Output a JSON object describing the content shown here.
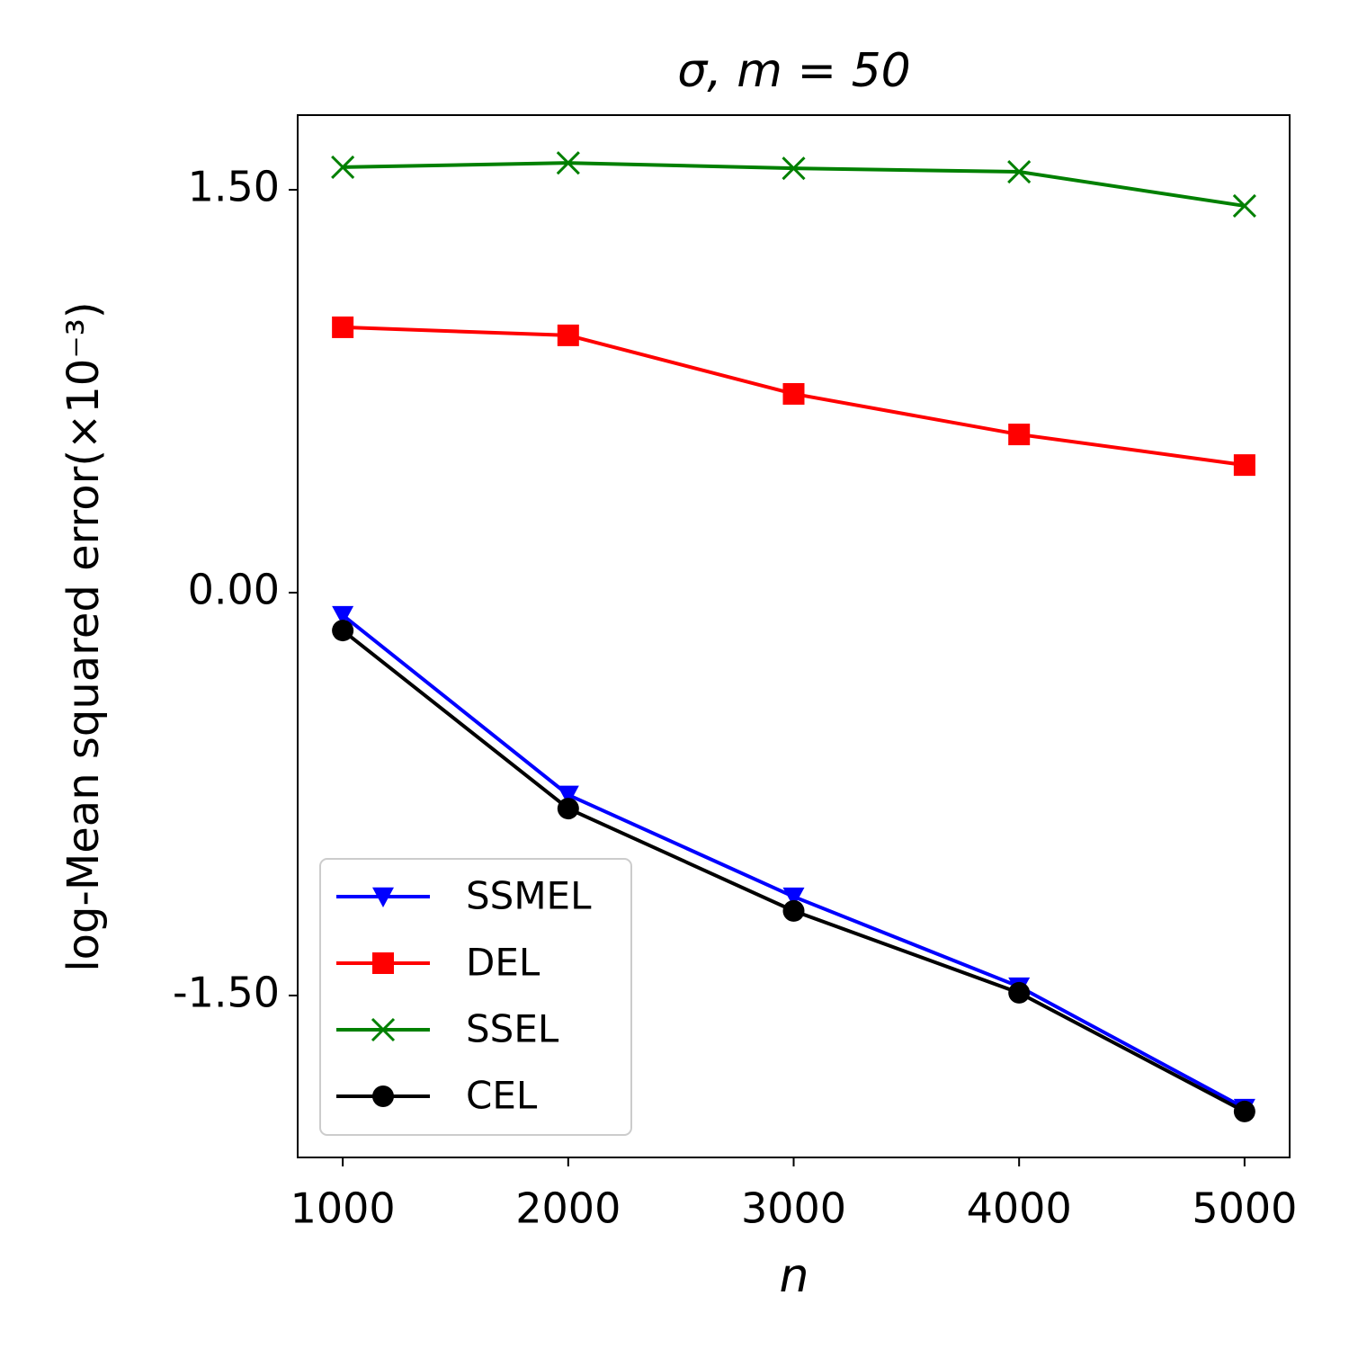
{
  "chart_data": {
    "type": "line",
    "title": "σ, m = 50",
    "x_label": "n",
    "y_label": "log-Mean squared error(×10⁻³)",
    "x": [
      1000,
      2000,
      3000,
      4000,
      5000
    ],
    "xlim": [
      800,
      5200
    ],
    "xticks": [
      1000,
      2000,
      3000,
      4000,
      5000
    ],
    "ylim": [
      -2.103,
      1.778
    ],
    "yticks": [
      {
        "value": -1.5,
        "label": "-1.50"
      },
      {
        "value": 0,
        "label": "0.00"
      },
      {
        "value": 1.5,
        "label": "1.50"
      }
    ],
    "legend": "lower left",
    "series": [
      {
        "name": "SSMEL",
        "color": "#0000ff",
        "marker": "triangle-down",
        "values": [
          -0.084,
          -0.753,
          -1.132,
          -1.467,
          -1.919
        ]
      },
      {
        "name": "DEL",
        "color": "#ff0000",
        "marker": "square",
        "values": [
          0.988,
          0.958,
          0.74,
          0.589,
          0.475
        ]
      },
      {
        "name": "SSEL",
        "color": "#008000",
        "marker": "x",
        "values": [
          1.584,
          1.6,
          1.58,
          1.567,
          1.44
        ]
      },
      {
        "name": "CEL",
        "color": "#000000",
        "marker": "circle",
        "values": [
          -0.141,
          -0.804,
          -1.185,
          -1.49,
          -1.932
        ]
      }
    ]
  }
}
